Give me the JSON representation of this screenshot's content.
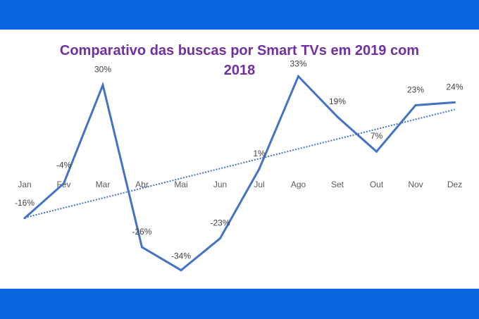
{
  "chart_data": {
    "type": "line",
    "title": "Comparativo das buscas por Smart TVs em 2019 com 2018",
    "categories": [
      "Jan",
      "Fev",
      "Mar",
      "Abr",
      "Mai",
      "Jun",
      "Jul",
      "Ago",
      "Set",
      "Out",
      "Nov",
      "Dez"
    ],
    "series": [
      {
        "values": [
          -16,
          -4,
          30,
          -26,
          -34,
          -23,
          1,
          33,
          19,
          7,
          23,
          24
        ],
        "labels": [
          "-16%",
          "-4%",
          "30%",
          "-26%",
          "-34%",
          "-23%",
          "1%",
          "33%",
          "19%",
          "7%",
          "23%",
          "24%"
        ],
        "color": "#4472c4"
      }
    ],
    "trendline": {
      "type": "linear",
      "style": "dotted",
      "color": "#4472c4"
    },
    "grid": false,
    "legend": "none"
  },
  "colors": {
    "frame": "#0a66e0",
    "title": "#7030a0"
  }
}
